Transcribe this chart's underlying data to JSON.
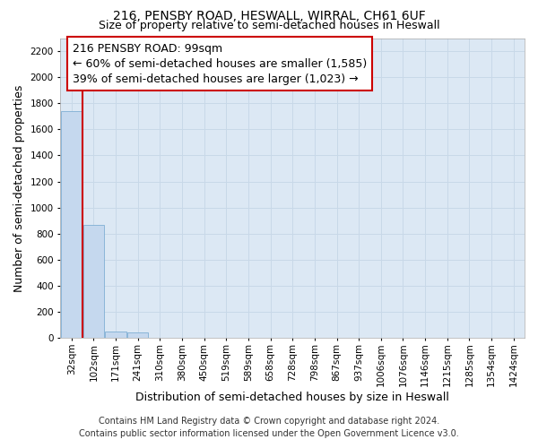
{
  "title": "216, PENSBY ROAD, HESWALL, WIRRAL, CH61 6UF",
  "subtitle": "Size of property relative to semi-detached houses in Heswall",
  "xlabel": "Distribution of semi-detached houses by size in Heswall",
  "ylabel": "Number of semi-detached properties",
  "annotation_line1": "216 PENSBY ROAD: 99sqm",
  "annotation_line2": "← 60% of semi-detached houses are smaller (1,585)",
  "annotation_line3": "39% of semi-detached houses are larger (1,023) →",
  "footnote1": "Contains HM Land Registry data © Crown copyright and database right 2024.",
  "footnote2": "Contains public sector information licensed under the Open Government Licence v3.0.",
  "categories": [
    "32sqm",
    "102sqm",
    "171sqm",
    "241sqm",
    "310sqm",
    "380sqm",
    "450sqm",
    "519sqm",
    "589sqm",
    "658sqm",
    "728sqm",
    "798sqm",
    "867sqm",
    "937sqm",
    "1006sqm",
    "1076sqm",
    "1146sqm",
    "1215sqm",
    "1285sqm",
    "1354sqm",
    "1424sqm"
  ],
  "values": [
    1740,
    870,
    50,
    40,
    0,
    0,
    0,
    0,
    0,
    0,
    0,
    0,
    0,
    0,
    0,
    0,
    0,
    0,
    0,
    0,
    0
  ],
  "bar_width": 0.95,
  "property_line_x": 0.5,
  "bar_color": "#c5d8ee",
  "bar_edge_color": "#7fafd4",
  "annotation_box_color": "#ffffff",
  "annotation_box_edge": "#cc0000",
  "property_line_color": "#cc0000",
  "grid_color": "#c8d8e8",
  "bg_color": "#dce8f4",
  "ylim": [
    0,
    2300
  ],
  "ytick_step": 200,
  "title_fontsize": 10,
  "subtitle_fontsize": 9,
  "annotation_fontsize": 9,
  "axis_label_fontsize": 9,
  "tick_fontsize": 7.5,
  "footnote_fontsize": 7
}
